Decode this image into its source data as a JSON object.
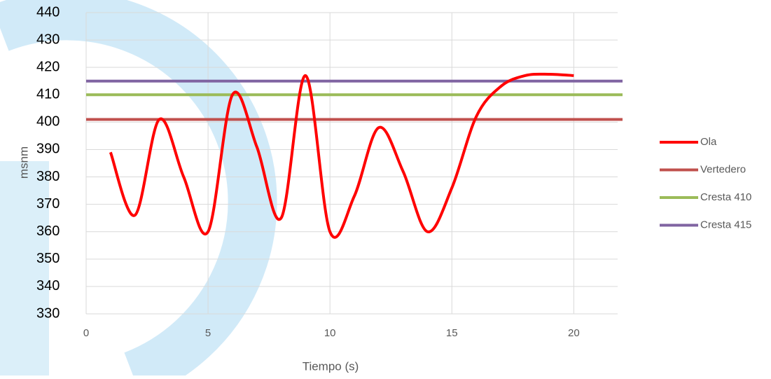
{
  "chart_data": {
    "type": "line",
    "xlabel": "Tiempo (s)",
    "ylabel": "msnm",
    "xlim": [
      0,
      22
    ],
    "ylim": [
      330,
      440
    ],
    "xticks": [
      0,
      5,
      10,
      15,
      20
    ],
    "yticks": [
      330,
      340,
      350,
      360,
      370,
      380,
      390,
      400,
      410,
      420,
      430,
      440
    ],
    "grid": true,
    "legend": "right",
    "series": [
      {
        "name": "Ola",
        "color": "#ff0000",
        "smooth": true,
        "x": [
          1,
          2,
          3,
          4,
          5,
          6,
          7,
          8,
          9,
          10,
          11,
          12,
          13,
          14,
          15,
          16,
          17,
          18,
          19,
          20
        ],
        "values": [
          389,
          366,
          401,
          380,
          360,
          410,
          391,
          365,
          417,
          360,
          373,
          398,
          382,
          360,
          376,
          402,
          413,
          417,
          417.5,
          417
        ]
      },
      {
        "name": "Vertedero",
        "color": "#c0504d",
        "x": [
          0,
          22
        ],
        "values": [
          401,
          401
        ]
      },
      {
        "name": "Cresta 410",
        "color": "#9bbb59",
        "x": [
          0,
          22
        ],
        "values": [
          410,
          410
        ]
      },
      {
        "name": "Cresta 415",
        "color": "#8064a2",
        "x": [
          0,
          22
        ],
        "values": [
          415,
          415
        ]
      }
    ]
  }
}
